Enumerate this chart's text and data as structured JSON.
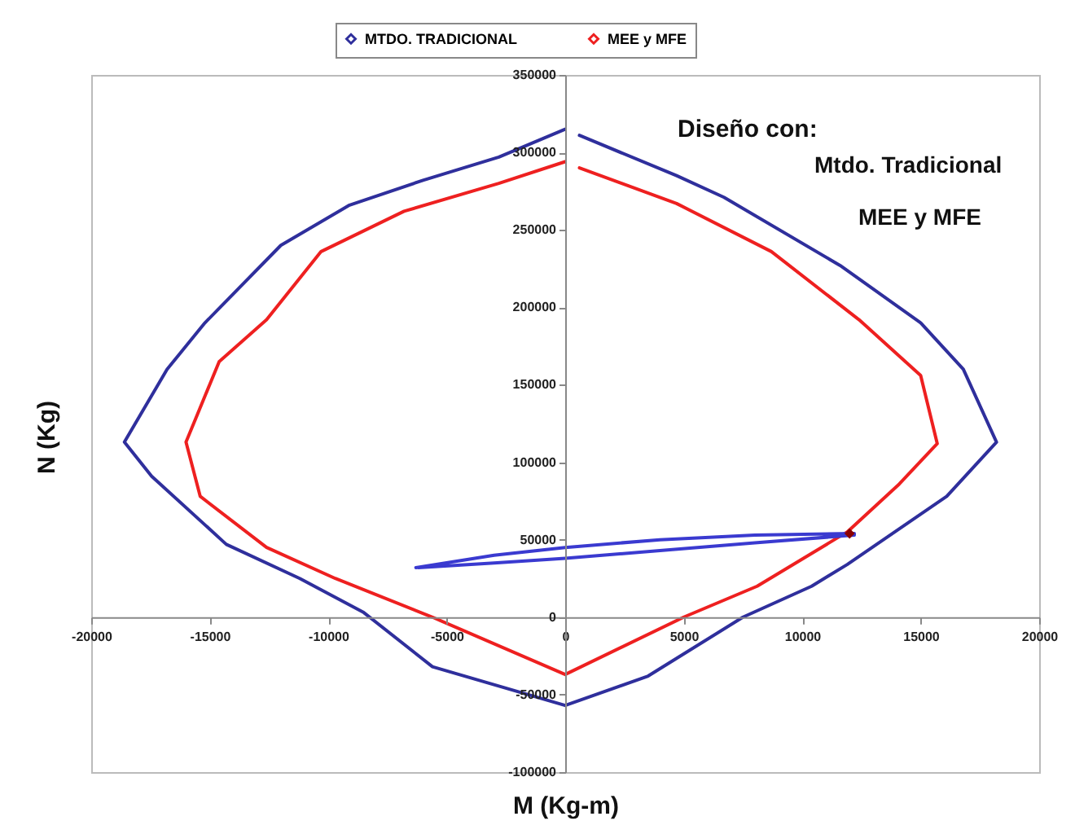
{
  "chart_data": {
    "type": "line",
    "xlabel": "M (Kg-m)",
    "ylabel": "N (Kg)",
    "annotations": [
      "Diseño  con:",
      "Mtdo. Tradicional",
      "MEE y MFE"
    ],
    "xlim": [
      -20000,
      20000
    ],
    "ylim": [
      -100000,
      350000
    ],
    "xticks": [
      -20000,
      -15000,
      -10000,
      -5000,
      0,
      5000,
      10000,
      15000,
      20000
    ],
    "yticks": [
      -100000,
      -50000,
      0,
      50000,
      100000,
      150000,
      200000,
      250000,
      300000,
      350000
    ],
    "grid": false,
    "legend": "top",
    "marker": "none",
    "line_style": "solid",
    "series": [
      {
        "name": "MTDO. TRADICIONAL",
        "color": "#2f2f9c",
        "x": [
          0,
          -2800,
          -6000,
          -9100,
          -12000,
          -15200,
          -16800,
          -18600,
          -17450,
          -14300,
          -11200,
          -8500,
          -5600,
          0,
          3500,
          7500,
          10400,
          11900,
          16100,
          18200,
          16800,
          15000,
          11600,
          6700,
          4700,
          600
        ],
        "values": [
          315000,
          297000,
          282000,
          266000,
          240000,
          190000,
          160000,
          113000,
          91000,
          47000,
          25000,
          3000,
          -32000,
          -57000,
          -38000,
          0,
          20000,
          34000,
          78000,
          113000,
          160000,
          190000,
          227000,
          271000,
          285000,
          311000
        ]
      },
      {
        "name": "MEE y MFE",
        "color": "#ee2020",
        "x": [
          0,
          -2800,
          -6800,
          -10300,
          -12600,
          -14600,
          -16000,
          -15400,
          -12600,
          -9700,
          -5600,
          0,
          5000,
          8100,
          11900,
          14100,
          15700,
          15000,
          12400,
          8700,
          4700,
          600
        ],
        "values": [
          294000,
          280000,
          262000,
          236000,
          192000,
          165000,
          113000,
          78000,
          45000,
          25000,
          0,
          -37000,
          0,
          20000,
          55000,
          86000,
          112000,
          156000,
          192000,
          236000,
          267000,
          290000
        ]
      },
      {
        "type": "line",
        "color": "#3a3ad0",
        "x": [
          -6300,
          -3000,
          0,
          4000,
          8000,
          12200,
          12200,
          8000,
          4000,
          0,
          -3000,
          -6200
        ],
        "values": [
          32000,
          40000,
          45000,
          50000,
          53000,
          54000,
          53000,
          48000,
          43000,
          38000,
          35000,
          32000
        ]
      },
      {
        "type": "scatter",
        "marker": "diamond",
        "color": "#8b0000",
        "x": [
          12000
        ],
        "values": [
          54000
        ]
      }
    ]
  }
}
